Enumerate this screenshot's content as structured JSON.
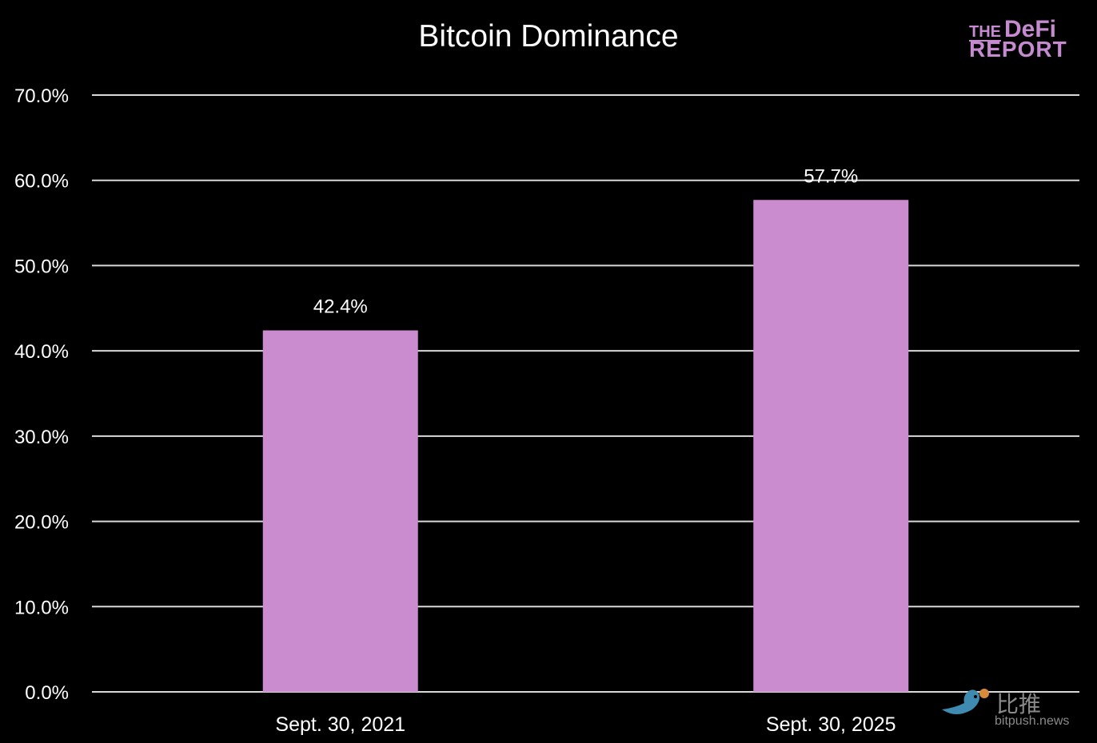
{
  "chart_data": {
    "type": "bar",
    "title": "Bitcoin Dominance",
    "categories": [
      "Sept. 30, 2021",
      "Sept. 30, 2025"
    ],
    "values": [
      42.4,
      57.7
    ],
    "data_labels": [
      "42.4%",
      "57.7%"
    ],
    "xlabel": "",
    "ylabel": "",
    "ylim": [
      0,
      70
    ],
    "yticks": [
      0,
      10,
      20,
      30,
      40,
      50,
      60,
      70
    ],
    "ytick_labels": [
      "0.0%",
      "10.0%",
      "20.0%",
      "30.0%",
      "40.0%",
      "50.0%",
      "60.0%",
      "70.0%"
    ],
    "grid": true,
    "legend": "none",
    "colors": {
      "bar": "#cb8bcf",
      "background": "#000000",
      "grid": "#d9d9d9",
      "text": "#ffffff"
    }
  },
  "logo": {
    "line1a": "THE",
    "line1b": "DeFi",
    "line2": "REPORT"
  },
  "watermark": {
    "cn": "比推",
    "en": "bitpush.news"
  }
}
